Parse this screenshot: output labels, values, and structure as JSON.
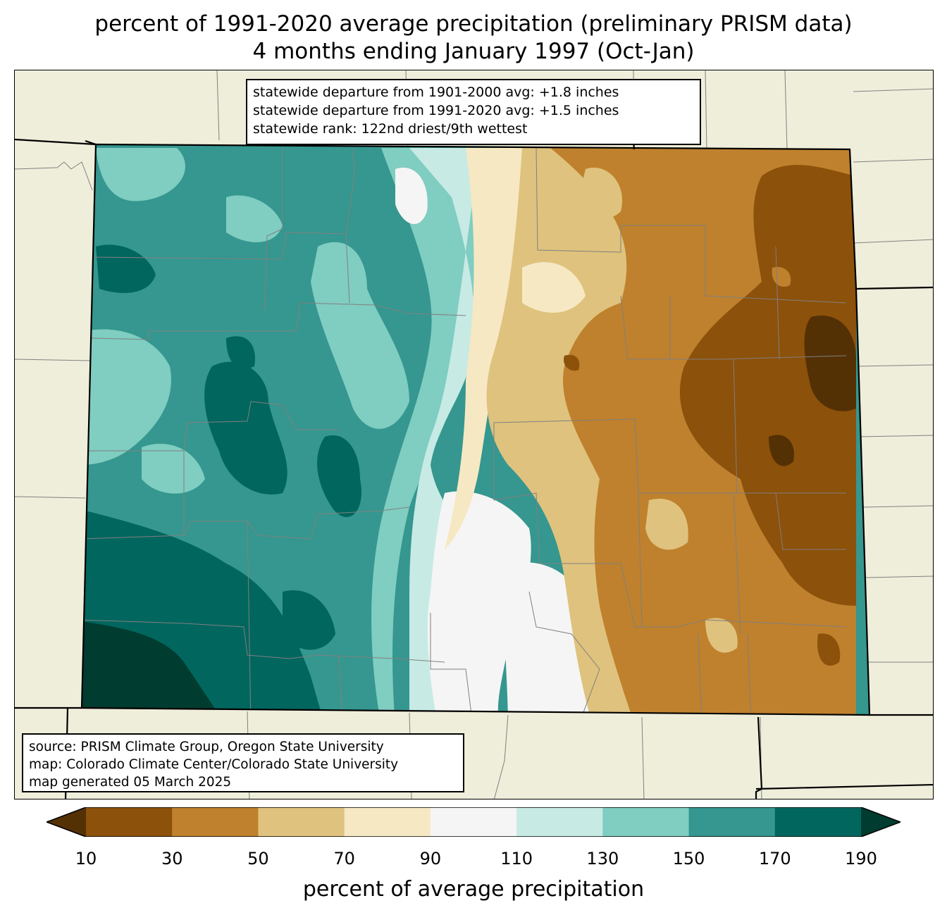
{
  "title": {
    "line1": "percent of 1991-2020 average precipitation (preliminary PRISM data)",
    "line2": "4 months ending January 1997 (Oct-Jan)"
  },
  "stats": {
    "line1": "statewide departure from 1901-2000 avg: +1.8 inches",
    "line2": "statewide departure from 1991-2020 avg: +1.5 inches",
    "line3": "statewide rank: 122nd driest/9th wettest"
  },
  "source": {
    "line1": "source: PRISM Climate Group, Oregon State University",
    "line2": "map: Colorado Climate Center/Colorado State University",
    "line3": "map generated 05 March 2025"
  },
  "colorbar": {
    "label": "percent of average precipitation",
    "ticks": [
      "10",
      "30",
      "50",
      "70",
      "90",
      "110",
      "130",
      "150",
      "170",
      "190"
    ],
    "colors": [
      "#543005",
      "#8c510a",
      "#bf812d",
      "#dfc27d",
      "#f6e8c3",
      "#f5f5f5",
      "#c7eae5",
      "#80cdc1",
      "#35978f",
      "#01665e",
      "#003c30"
    ]
  },
  "colors": {
    "land": "#efeedb",
    "state_border": "#000000",
    "county_border": "#808080"
  }
}
